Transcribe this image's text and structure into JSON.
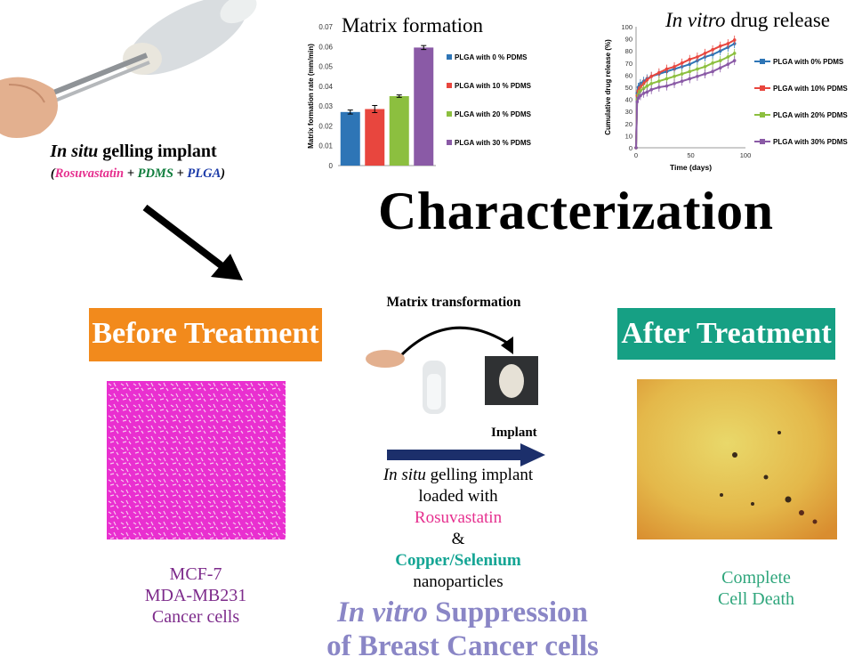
{
  "implant": {
    "title_italic": "In situ",
    "title_rest": " gelling implant",
    "sub_open": "(",
    "sub_ros": "Rosuvastatin",
    "sub_plus1": " + ",
    "sub_pdms": "PDMS",
    "sub_plus2": " + ",
    "sub_plga": "PLGA",
    "sub_close": ")"
  },
  "characterization": "Characterization",
  "before": {
    "banner": "Before Treatment",
    "caption_lines": [
      "MCF-7",
      "MDA-MB231",
      "Cancer cells"
    ]
  },
  "after": {
    "banner": "After Treatment",
    "caption_lines": [
      "Complete",
      "Cell Death"
    ]
  },
  "center": {
    "matrix_transformation": "Matrix transformation",
    "implant_label": "Implant",
    "line1_italic": "In situ",
    "line1_rest": " gelling implant",
    "line2": "loaded with",
    "line3": "Rosuvastatin",
    "line4": "&",
    "line5": "Copper/Selenium",
    "line6": "nanoparticles"
  },
  "suppression": {
    "italic": "In vitro",
    "rest": " Suppression",
    "line2": "of Breast Cancer cells"
  },
  "colors": {
    "orange": "#f28a1c",
    "green_banner": "#16a084",
    "navy_arrow": "#1c2f6b",
    "magenta_text": "#e6308f",
    "teal_text": "#14a594",
    "purple_text": "#7d2b8b",
    "lavender_text": "#8a86c6"
  },
  "chart_data": [
    {
      "type": "bar",
      "title": "Matrix formation",
      "ylabel": "Matrix formation rate (mm/min)",
      "xlabel": "",
      "ylim": [
        0,
        0.07
      ],
      "yticks": [
        "0",
        "0.01",
        "0.02",
        "0.03",
        "0.04",
        "0.05",
        "0.06",
        "0.07"
      ],
      "legend_position": "right",
      "categories": [
        "PLGA with 0 % PDMS",
        "PLGA with 10 % PDMS",
        "PLGA with 20 % PDMS",
        "PLGA with 30 % PDMS"
      ],
      "values": [
        0.027,
        0.0285,
        0.035,
        0.0595
      ],
      "errors": [
        0.001,
        0.0018,
        0.0006,
        0.001
      ],
      "colors": [
        "#2e75b6",
        "#e8463e",
        "#8cbf3f",
        "#8a5aa6"
      ]
    },
    {
      "type": "line",
      "title_italic": "In vitro",
      "title_rest": " drug release",
      "xlabel": "Time (days)",
      "ylabel": "Cumulative drug release (%)",
      "xlim": [
        0,
        100
      ],
      "ylim": [
        0,
        100
      ],
      "xticks": [
        "0",
        "50",
        "100"
      ],
      "yticks": [
        "0",
        "10",
        "20",
        "30",
        "40",
        "50",
        "60",
        "70",
        "80",
        "90",
        "100"
      ],
      "legend_position": "right",
      "x": [
        0,
        1,
        2,
        4,
        7,
        10,
        14,
        21,
        28,
        35,
        42,
        49,
        56,
        63,
        70,
        77,
        84,
        90
      ],
      "series": [
        {
          "name": "PLGA with 0% PDMS",
          "color": "#2e75b6",
          "marker": "diamond",
          "values": [
            0,
            45,
            50,
            53,
            55,
            57,
            59,
            61,
            63,
            65,
            67,
            69,
            72,
            75,
            77,
            80,
            83,
            86
          ]
        },
        {
          "name": "PLGA with 10% PDMS",
          "color": "#e8463e",
          "marker": "square",
          "values": [
            0,
            43,
            47,
            50,
            53,
            56,
            59,
            62,
            65,
            67,
            70,
            73,
            75,
            78,
            81,
            84,
            86,
            89
          ]
        },
        {
          "name": "PLGA with 20% PDMS",
          "color": "#8cbf3f",
          "marker": "triangle",
          "values": [
            0,
            40,
            44,
            47,
            49,
            51,
            53,
            55,
            57,
            59,
            61,
            63,
            65,
            67,
            70,
            72,
            75,
            78
          ]
        },
        {
          "name": "PLGA with 30% PDMS",
          "color": "#8a5aa6",
          "marker": "x",
          "values": [
            0,
            38,
            41,
            43,
            45,
            46,
            48,
            50,
            51,
            53,
            55,
            57,
            59,
            61,
            63,
            66,
            69,
            72
          ]
        }
      ]
    }
  ]
}
